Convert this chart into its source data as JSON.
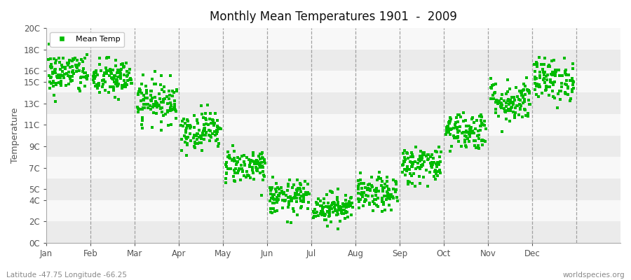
{
  "title": "Monthly Mean Temperatures 1901  -  2009",
  "ylabel": "Temperature",
  "subtitle": "Latitude -47.75 Longitude -66.25",
  "watermark": "worldspecies.org",
  "yticks": [
    0,
    2,
    4,
    5,
    7,
    9,
    11,
    13,
    15,
    16,
    18,
    20
  ],
  "ytick_labels": [
    "0C",
    "2C",
    "4C",
    "5C",
    "7C",
    "9C",
    "11C",
    "13C",
    "15C",
    "16C",
    "18C",
    "20C"
  ],
  "band_edges": [
    0,
    2,
    4,
    6,
    8,
    10,
    12,
    14,
    16,
    18,
    20
  ],
  "ylim": [
    0,
    20
  ],
  "months": [
    "Jan",
    "Feb",
    "Mar",
    "Apr",
    "May",
    "Jun",
    "Jul",
    "Aug",
    "Sep",
    "Oct",
    "Nov",
    "Dec"
  ],
  "month_means": [
    15.8,
    15.3,
    13.2,
    10.5,
    7.2,
    4.2,
    3.3,
    4.5,
    7.3,
    10.5,
    13.2,
    15.2
  ],
  "month_stds": [
    1.0,
    0.9,
    1.0,
    0.9,
    0.8,
    0.8,
    0.7,
    0.8,
    0.9,
    0.9,
    1.0,
    1.0
  ],
  "n_years": 109,
  "dot_color": "#00bb00",
  "dot_size": 5,
  "bg_band_colors": [
    "#ebebeb",
    "#f8f8f8"
  ],
  "dashed_line_color": "#999999",
  "legend_dot_color": "#00bb00",
  "xlim": [
    0,
    13
  ],
  "month_positions": [
    0.5,
    1.5,
    2.5,
    3.5,
    4.5,
    5.5,
    6.5,
    7.5,
    8.5,
    9.5,
    10.5,
    11.5
  ],
  "dashed_positions": [
    1,
    2,
    3,
    4,
    5,
    6,
    7,
    8,
    9,
    10,
    11,
    12
  ],
  "seed": 42
}
